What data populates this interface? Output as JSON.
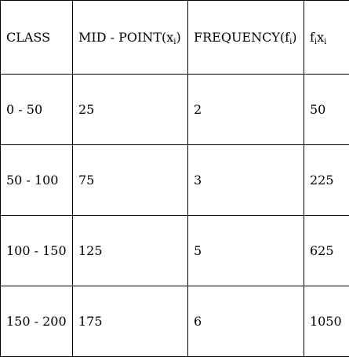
{
  "table": {
    "headers": {
      "class": "CLASS",
      "midpoint": "MID - POINT(x",
      "midpoint_sub": "i",
      "midpoint_close": ")",
      "frequency": "FREQUENCY(f",
      "frequency_sub": "i",
      "frequency_close": ")",
      "product_f": "f",
      "product_f_sub": "i",
      "product_x": "x",
      "product_x_sub": "i"
    },
    "rows": [
      {
        "class": "0 - 50",
        "midpoint": "25",
        "frequency": "2",
        "product": "50"
      },
      {
        "class": "50 - 100",
        "midpoint": "75",
        "frequency": "3",
        "product": "225"
      },
      {
        "class": "100 - 150",
        "midpoint": "125",
        "frequency": "5",
        "product": "625"
      },
      {
        "class": "150 - 200",
        "midpoint": "175",
        "frequency": "6",
        "product": "1050"
      }
    ]
  }
}
